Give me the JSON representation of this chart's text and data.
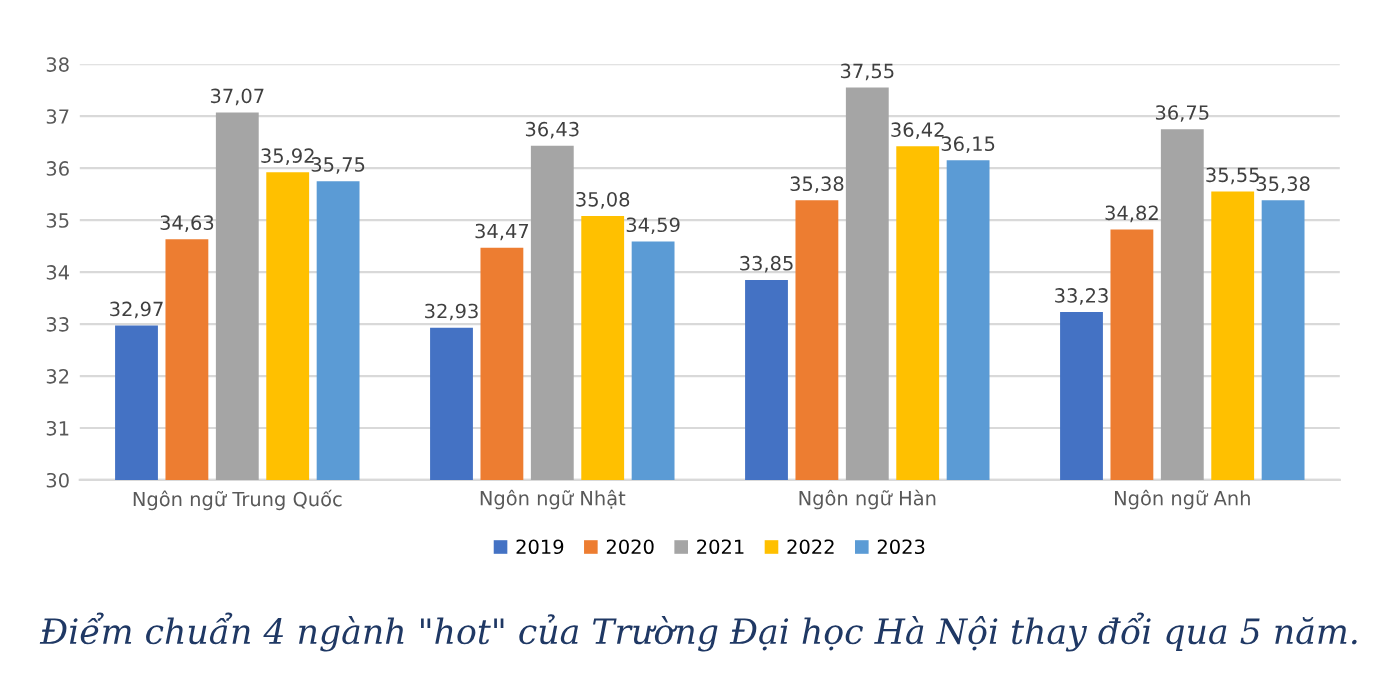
{
  "chart_data": {
    "type": "bar",
    "categories": [
      "Ngôn ngữ Trung Quốc",
      "Ngôn ngữ Nhật",
      "Ngôn ngữ Hàn",
      "Ngôn ngữ Anh"
    ],
    "series": [
      {
        "name": "2019",
        "color": "#4472c4",
        "values": [
          32.97,
          32.93,
          33.85,
          33.23
        ],
        "value_labels": [
          "32,97",
          "32,93",
          "33,85",
          "33,23"
        ]
      },
      {
        "name": "2020",
        "color": "#ed7d31",
        "values": [
          34.63,
          34.47,
          35.38,
          34.82
        ],
        "value_labels": [
          "34,63",
          "34,47",
          "35,38",
          "34,82"
        ]
      },
      {
        "name": "2021",
        "color": "#a5a5a5",
        "values": [
          37.07,
          36.43,
          37.55,
          36.75
        ],
        "value_labels": [
          "37,07",
          "36,43",
          "37,55",
          "36,75"
        ]
      },
      {
        "name": "2022",
        "color": "#ffc000",
        "values": [
          35.92,
          35.08,
          36.42,
          35.55
        ],
        "value_labels": [
          "35,92",
          "35,08",
          "36,42",
          "35,55"
        ]
      },
      {
        "name": "2023",
        "color": "#5b9bd5",
        "values": [
          35.75,
          34.59,
          36.15,
          35.38
        ],
        "value_labels": [
          "35,75",
          "34,59",
          "36,15",
          "35,38"
        ]
      }
    ],
    "ylim": [
      30,
      38
    ],
    "yticks": [
      30,
      31,
      32,
      33,
      34,
      35,
      36,
      37,
      38
    ],
    "grid": "y",
    "legend": "bottom",
    "annotations": [
      "Điểm chuẩn 4 ngành \"hot\" của Trường Đại học Hà Nội thay đổi qua 5 năm."
    ]
  }
}
